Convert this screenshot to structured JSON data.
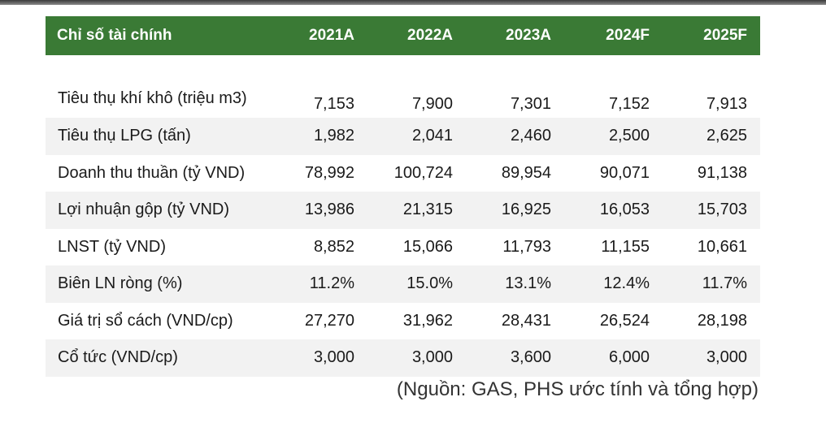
{
  "table": {
    "headers": [
      "Chỉ số tài chính",
      "2021A",
      "2022A",
      "2023A",
      "2024F",
      "2025F"
    ],
    "rows": [
      {
        "label": "Tiêu thụ khí khô (triệu m3)",
        "values": [
          "7,153",
          "7,900",
          "7,301",
          "7,152",
          "7,913"
        ]
      },
      {
        "label": "Tiêu thụ LPG (tấn)",
        "values": [
          "1,982",
          "2,041",
          "2,460",
          "2,500",
          "2,625"
        ]
      },
      {
        "label": "Doanh thu thuần (tỷ VND)",
        "values": [
          "78,992",
          "100,724",
          "89,954",
          "90,071",
          "91,138"
        ]
      },
      {
        "label": "Lợi nhuận gộp (tỷ VND)",
        "values": [
          "13,986",
          "21,315",
          "16,925",
          "16,053",
          "15,703"
        ]
      },
      {
        "label": "LNST (tỷ VND)",
        "values": [
          "8,852",
          "15,066",
          "11,793",
          "11,155",
          "10,661"
        ]
      },
      {
        "label": "Biên LN ròng (%)",
        "values": [
          "11.2%",
          "15.0%",
          "13.1%",
          "12.4%",
          "11.7%"
        ]
      },
      {
        "label": "Giá trị sổ cách (VND/cp)",
        "values": [
          "27,270",
          "31,962",
          "28,431",
          "26,524",
          "28,198"
        ]
      },
      {
        "label": "Cổ tức (VND/cp)",
        "values": [
          "3,000",
          "3,000",
          "3,600",
          "6,000",
          "3,000"
        ]
      }
    ]
  },
  "source_note": "(Nguồn: GAS, PHS ước tính và tổng hợp)",
  "colors": {
    "header_bg": "#3a7a35",
    "row_shade": "#f2f2f2"
  }
}
